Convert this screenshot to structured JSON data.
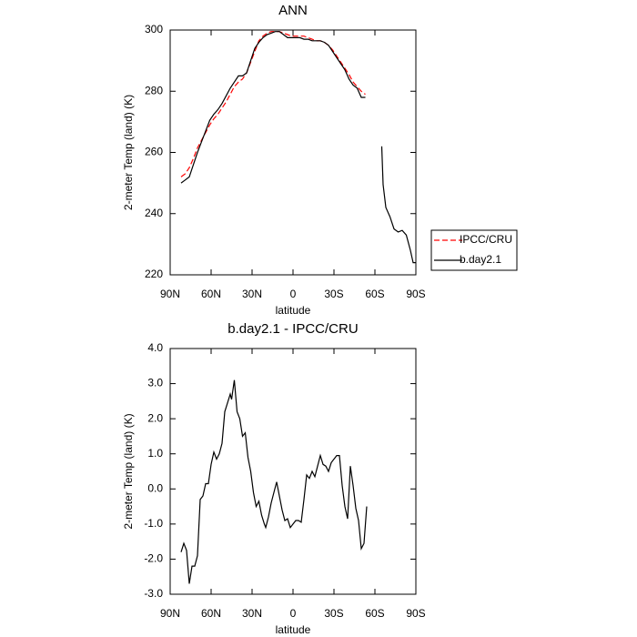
{
  "chart_data": [
    {
      "type": "line",
      "title": "ANN",
      "xlabel": "latitude",
      "ylabel": "2-meter Temp (land) (K)",
      "x": [
        82,
        79,
        76,
        73,
        70,
        67,
        64,
        61,
        58,
        55,
        52,
        49,
        46,
        43,
        40,
        37,
        34,
        31,
        28,
        25,
        22,
        19,
        16,
        13,
        10,
        7,
        4,
        1,
        -2,
        -5,
        -8,
        -11,
        -14,
        -17,
        -20,
        -23,
        -26,
        -29,
        -32,
        -35,
        -38,
        -41,
        -44,
        -47,
        -50,
        -53,
        -59,
        -65,
        -66,
        -68,
        -71,
        -74,
        -77,
        -80,
        -83,
        -86,
        -88,
        -90
      ],
      "series": [
        {
          "name": "IPCC/CRU",
          "color": "#ff0000",
          "style": "dashed",
          "values": [
            252,
            253,
            255,
            258,
            261.5,
            264,
            266.5,
            269,
            271,
            272.5,
            274.5,
            276.5,
            279,
            281.5,
            283,
            284,
            286,
            289.5,
            293,
            296.5,
            298,
            299,
            299.5,
            299.5,
            299.5,
            299,
            298.5,
            298,
            298,
            298,
            298,
            297.5,
            297,
            296.5,
            296.5,
            296,
            295,
            293.5,
            291.5,
            289.5,
            287.5,
            285.5,
            283,
            281.5,
            280,
            279,
            null,
            null,
            null,
            null,
            null,
            null,
            null,
            null,
            null,
            null,
            null,
            null
          ]
        },
        {
          "name": "b.day2.1",
          "color": "#000000",
          "style": "solid",
          "values": [
            250,
            251,
            252,
            256,
            260,
            263.5,
            267,
            270.5,
            272.5,
            274,
            276,
            278.5,
            281,
            283,
            285,
            285,
            286,
            290,
            294,
            296,
            297.5,
            298.5,
            299,
            299.5,
            299.5,
            298.5,
            297.5,
            297.5,
            297.5,
            297.5,
            297,
            297,
            296.5,
            296.5,
            296.5,
            296,
            295,
            293,
            291,
            289,
            287,
            284,
            282,
            281,
            278,
            278,
            null,
            262,
            249.5,
            242,
            239,
            235,
            234,
            234.5,
            233,
            228,
            224,
            224
          ]
        }
      ],
      "xlim": [
        90,
        -90
      ],
      "xticks": [
        {
          "value": 90,
          "label": "90N"
        },
        {
          "value": 60,
          "label": "60N"
        },
        {
          "value": 30,
          "label": "30N"
        },
        0,
        {
          "value": -30,
          "label": "30S"
        },
        {
          "value": -60,
          "label": "60S"
        },
        {
          "value": -90,
          "label": "90S"
        }
      ],
      "ylim": [
        220,
        300
      ],
      "yticks": [
        220,
        240,
        260,
        280,
        300
      ],
      "legend": "right"
    },
    {
      "type": "line",
      "title": "b.day2.1 - IPCC/CRU",
      "xlabel": "latitude",
      "ylabel": "2-meter Temp (land) (K)",
      "x": [
        82,
        80,
        78,
        76,
        74,
        72,
        70,
        68,
        66,
        64,
        62,
        60,
        58,
        56,
        54,
        52,
        50,
        48,
        46,
        45,
        43,
        41,
        39,
        37,
        35,
        33,
        31,
        29,
        27,
        25,
        23,
        21,
        20,
        18,
        16,
        14,
        12,
        10,
        8,
        6,
        4,
        2,
        0,
        -2,
        -4,
        -6,
        -8,
        -10,
        -12,
        -14,
        -16,
        -18,
        -20,
        -22,
        -24,
        -26,
        -28,
        -30,
        -32,
        -34,
        -36,
        -38,
        -40,
        -42,
        -44,
        -46,
        -48,
        -50,
        -52,
        -54
      ],
      "series": [
        {
          "color": "#000000",
          "style": "solid",
          "values": [
            -1.8,
            -1.55,
            -1.75,
            -2.7,
            -2.2,
            -2.2,
            -1.9,
            -0.3,
            -0.2,
            0.15,
            0.15,
            0.7,
            1.05,
            0.85,
            1.0,
            1.3,
            2.2,
            2.45,
            2.7,
            2.55,
            3.1,
            2.2,
            2.0,
            1.5,
            1.6,
            0.9,
            0.5,
            -0.1,
            -0.5,
            -0.35,
            -0.75,
            -1.0,
            -1.1,
            -0.8,
            -0.4,
            -0.1,
            0.2,
            -0.2,
            -0.6,
            -0.9,
            -0.85,
            -1.1,
            -1.0,
            -0.9,
            -0.9,
            -0.95,
            -0.3,
            0.4,
            0.3,
            0.5,
            0.35,
            0.65,
            0.95,
            0.7,
            0.65,
            0.5,
            0.75,
            0.85,
            0.95,
            0.95,
            0.1,
            -0.5,
            -0.85,
            0.65,
            0.1,
            -0.55,
            -0.9,
            -1.7,
            -1.55,
            -0.5
          ]
        }
      ],
      "xlim": [
        90,
        -90
      ],
      "xticks": [
        {
          "value": 90,
          "label": "90N"
        },
        {
          "value": 60,
          "label": "60N"
        },
        {
          "value": 30,
          "label": "30N"
        },
        0,
        {
          "value": -30,
          "label": "30S"
        },
        {
          "value": -60,
          "label": "60S"
        },
        {
          "value": -90,
          "label": "90S"
        }
      ],
      "ylim": [
        -3,
        4
      ],
      "yticks": [
        {
          "value": -3,
          "label": "-3.0"
        },
        {
          "value": -2,
          "label": "-2.0"
        },
        {
          "value": -1,
          "label": "-1.0"
        },
        {
          "value": 0,
          "label": "0.0"
        },
        {
          "value": 1,
          "label": "1.0"
        },
        {
          "value": 2,
          "label": "2.0"
        },
        {
          "value": 3,
          "label": "3.0"
        },
        {
          "value": 4,
          "label": "4.0"
        }
      ]
    }
  ]
}
